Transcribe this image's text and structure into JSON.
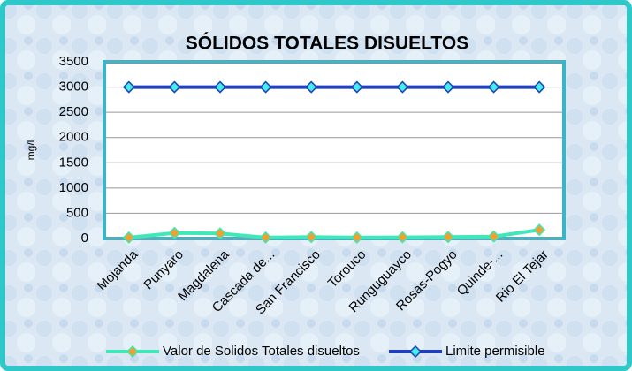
{
  "chart_data": {
    "type": "line",
    "title": "SÓLIDOS TOTALES DISUELTOS",
    "y_label": "mg/l",
    "categories": [
      "Mojanda",
      "Punyaro",
      "Magdalena",
      "Cascada de...",
      "San Francisco",
      "Torouco",
      "Runguguayco",
      "Rosas-Pogyo",
      "Quinde-...",
      "Rio El Tejar"
    ],
    "series": [
      {
        "name": "Valor de Solidos Totales disueltos",
        "color": "#3ee8b8",
        "marker_color": "#f0a030",
        "values": [
          20,
          110,
          100,
          20,
          30,
          20,
          25,
          30,
          40,
          170
        ]
      },
      {
        "name": "Limite permisible",
        "color": "#1f3fbf",
        "marker_color": "#40f0e8",
        "values": [
          3000,
          3000,
          3000,
          3000,
          3000,
          3000,
          3000,
          3000,
          3000,
          3000
        ]
      }
    ],
    "ylim": [
      0,
      3500
    ],
    "yticks": [
      0,
      500,
      1000,
      1500,
      2000,
      2500,
      3000,
      3500
    ],
    "grid": true,
    "legend": "bottom"
  }
}
